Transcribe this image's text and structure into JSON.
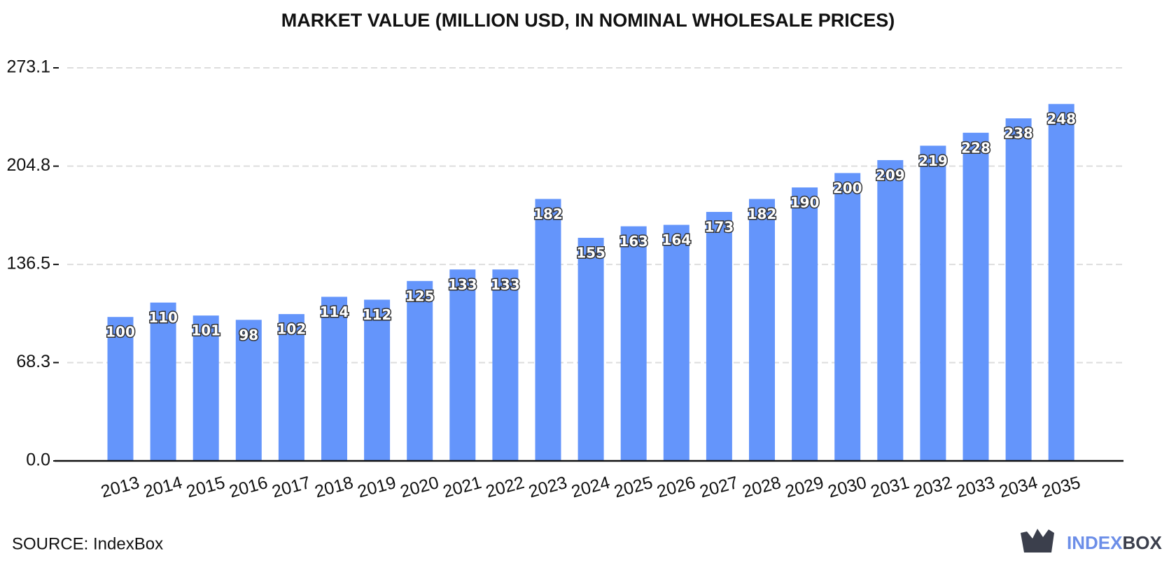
{
  "chart_data": {
    "type": "bar",
    "title": "MARKET VALUE (MILLION USD, IN NOMINAL WHOLESALE PRICES)",
    "categories": [
      "2013",
      "2014",
      "2015",
      "2016",
      "2017",
      "2018",
      "2019",
      "2020",
      "2021",
      "2022",
      "2023",
      "2024",
      "2025",
      "2026",
      "2027",
      "2028",
      "2029",
      "2030",
      "2031",
      "2032",
      "2033",
      "2034",
      "2035"
    ],
    "values": [
      100,
      110,
      101,
      98,
      102,
      114,
      112,
      125,
      133,
      133,
      182,
      155,
      163,
      164,
      173,
      182,
      190,
      200,
      209,
      219,
      228,
      238,
      248
    ],
    "color": "#6495fb",
    "ylim": [
      0,
      273.1
    ],
    "yticks": [
      {
        "value": 0,
        "label": "0.0"
      },
      68.3,
      136.5,
      204.8,
      273.1
    ],
    "grid": true
  },
  "source": "SOURCE: IndexBox",
  "brand": [
    "INDEX",
    "BOX"
  ]
}
